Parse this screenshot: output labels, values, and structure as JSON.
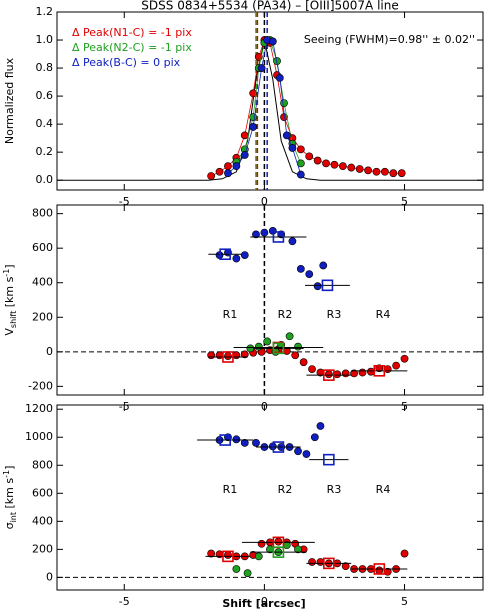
{
  "title": "SDSS 0834+5534 (PA34) – [OIII]5007A line",
  "chart_data": [
    {
      "type": "scatter",
      "xlim": [
        -7.4,
        7.8
      ],
      "xticks": [
        -5,
        0,
        5
      ],
      "ylim": [
        -0.07,
        1.2
      ],
      "yticks": [
        {
          "value": 0,
          "label": "0.0"
        },
        {
          "value": 0.2,
          "label": "0.2"
        },
        {
          "value": 0.4,
          "label": "0.4"
        },
        {
          "value": 0.6,
          "label": "0.6"
        },
        {
          "value": 0.8,
          "label": "0.8"
        },
        {
          "value": 1.0,
          "label": "1.0"
        },
        {
          "value": 1.2,
          "label": "1.2"
        }
      ],
      "ylabel": {
        "text": "Normalized flux"
      },
      "annotation": "Seeing (FWHM)=0.98'' ± 0.02''",
      "vlines": [
        {
          "x": 0,
          "color": "#000000"
        },
        {
          "x": -0.3,
          "color": "#20a020"
        },
        {
          "x": -0.25,
          "color": "#e00000"
        },
        {
          "x": 0.1,
          "color": "#1020c0"
        }
      ],
      "series": [
        {
          "style": "line",
          "color": "#000000",
          "x": [
            -7.4,
            -2,
            -1.5,
            -1,
            -0.6,
            -0.3,
            0,
            0.3,
            0.6,
            1,
            1.5,
            2,
            7.8
          ],
          "values": [
            0,
            0,
            0.01,
            0.06,
            0.28,
            0.72,
            1.0,
            0.72,
            0.28,
            0.06,
            0.01,
            0,
            0
          ]
        },
        {
          "name": "Δ Peak(N1-C) = -1 pix",
          "style": "line+markers",
          "color": "#e00000",
          "x": [
            -1.9,
            -1.6,
            -1.3,
            -1.0,
            -0.7,
            -0.4,
            -0.2,
            0,
            0.2,
            0.45,
            0.7,
            1.0,
            1.3,
            1.6,
            1.9,
            2.2,
            2.5,
            2.8,
            3.1,
            3.4,
            3.7,
            4.0,
            4.3,
            4.6,
            4.9
          ],
          "values": [
            0.03,
            0.06,
            0.1,
            0.16,
            0.32,
            0.62,
            0.88,
            1.0,
            0.98,
            0.75,
            0.45,
            0.3,
            0.22,
            0.17,
            0.14,
            0.12,
            0.11,
            0.1,
            0.09,
            0.08,
            0.07,
            0.06,
            0.06,
            0.05,
            0.05
          ]
        },
        {
          "name": "Δ Peak(N2-C) = -1 pix",
          "style": "line+markers",
          "color": "#20a020",
          "x": [
            -1.0,
            -0.7,
            -0.4,
            -0.2,
            0,
            0.2,
            0.45,
            0.7,
            1.0,
            1.3
          ],
          "values": [
            0.13,
            0.22,
            0.45,
            0.8,
            0.98,
            1.0,
            0.85,
            0.55,
            0.26,
            0.12
          ]
        },
        {
          "name": "Δ Peak(B-C) = 0 pix",
          "style": "line+markers",
          "color": "#1020c0",
          "x": [
            -1.3,
            -1.0,
            -0.7,
            -0.4,
            -0.1,
            0.1,
            0.3,
            0.55,
            0.8,
            1.0,
            1.3
          ],
          "values": [
            0.05,
            0.1,
            0.18,
            0.38,
            0.8,
            1.0,
            0.99,
            0.73,
            0.32,
            0.23,
            0.04
          ]
        }
      ]
    },
    {
      "type": "scatter",
      "xlim": [
        -7.4,
        7.8
      ],
      "xticks": [
        -5,
        0,
        5
      ],
      "ylim": [
        -250,
        850
      ],
      "yticks": [
        -200,
        0,
        200,
        400,
        600,
        800
      ],
      "ylabel": {
        "text": "V",
        "sub": "shift",
        "unit": " [km s",
        "sup": "-1",
        "close": "]"
      },
      "region_labels": [
        "R1",
        "R2",
        "R3",
        "R4"
      ],
      "vlines": [
        {
          "x": 0,
          "color": "#000000"
        }
      ],
      "hlines": [
        {
          "y": 0,
          "color": "#000000"
        }
      ],
      "series": [
        {
          "style": "markers",
          "color": "#1020c0",
          "x": [
            -1.6,
            -1.3,
            -1.0,
            -0.7,
            -0.3,
            0,
            0.3,
            0.6,
            1.0,
            1.3,
            1.6,
            1.9,
            2.1
          ],
          "values": [
            560,
            575,
            540,
            560,
            680,
            690,
            700,
            680,
            640,
            480,
            450,
            380,
            500
          ]
        },
        {
          "style": "markers",
          "color": "#e00000",
          "x": [
            -1.9,
            -1.6,
            -1.3,
            -1.0,
            -0.7,
            -0.4,
            -0.1,
            0.2,
            0.5,
            0.8,
            1.1,
            1.4,
            1.7,
            2.0,
            2.3,
            2.6,
            2.9,
            3.2,
            3.5,
            3.8,
            4.1,
            4.4,
            4.7,
            5.0
          ],
          "values": [
            -20,
            -20,
            -25,
            -20,
            -15,
            -5,
            0,
            10,
            15,
            5,
            -20,
            -60,
            -100,
            -120,
            -130,
            -130,
            -125,
            -125,
            -120,
            -115,
            -95,
            -100,
            -80,
            -40
          ]
        },
        {
          "style": "markers",
          "color": "#20a020",
          "x": [
            -0.5,
            -0.2,
            0.1,
            0.4,
            0.6,
            0.9,
            1.2
          ],
          "values": [
            20,
            30,
            60,
            0,
            40,
            90,
            30
          ]
        },
        {
          "style": "squares",
          "color": "#1020c0",
          "x": [
            -1.4,
            0.5,
            2.25
          ],
          "xerr": [
            0.6,
            1.0,
            0.8
          ],
          "values": [
            565,
            665,
            385
          ]
        },
        {
          "style": "squares",
          "color": "#e00000",
          "x": [
            -1.3,
            0.5,
            2.3,
            4.1
          ],
          "xerr": [
            0.7,
            1.6,
            0.8,
            1.0
          ],
          "values": [
            -30,
            25,
            -135,
            -110
          ]
        },
        {
          "style": "squares",
          "color": "#20a020",
          "x": [
            0.5
          ],
          "xerr": [
            0.9
          ],
          "values": [
            20
          ]
        }
      ]
    },
    {
      "type": "scatter",
      "xlim": [
        -7.4,
        7.8
      ],
      "xticks": [
        -5,
        0,
        5
      ],
      "xlabel": "Shift [arcsec]",
      "ylim": [
        -90,
        1230
      ],
      "yticks": [
        0,
        200,
        400,
        600,
        800,
        1000,
        1200
      ],
      "ylabel": {
        "text": "σ",
        "sub": "int",
        "unit": " [km s",
        "sup": "-1",
        "close": "]"
      },
      "region_labels": [
        "R1",
        "R2",
        "R3",
        "R4"
      ],
      "hlines": [
        {
          "y": 0,
          "color": "#000000"
        }
      ],
      "series": [
        {
          "style": "markers",
          "color": "#1020c0",
          "x": [
            -1.6,
            -1.3,
            -1.0,
            -0.7,
            -0.3,
            0,
            0.3,
            0.6,
            0.9,
            1.2,
            1.5,
            1.8,
            2.0
          ],
          "values": [
            980,
            1000,
            985,
            960,
            960,
            930,
            935,
            930,
            930,
            900,
            880,
            1000,
            1080
          ]
        },
        {
          "style": "markers",
          "color": "#e00000",
          "x": [
            -1.9,
            -1.6,
            -1.3,
            -1.0,
            -0.7,
            -0.4,
            -0.1,
            0.2,
            0.5,
            0.8,
            1.1,
            1.4,
            1.7,
            2.0,
            2.3,
            2.6,
            2.9,
            3.2,
            3.5,
            3.8,
            4.1,
            4.4,
            4.7,
            5.0
          ],
          "values": [
            170,
            165,
            160,
            150,
            150,
            160,
            240,
            250,
            255,
            250,
            240,
            200,
            110,
            110,
            100,
            100,
            80,
            60,
            60,
            60,
            50,
            40,
            60,
            170
          ]
        },
        {
          "style": "markers",
          "color": "#20a020",
          "x": [
            -1.0,
            -0.6,
            -0.2,
            0.2,
            0.5,
            0.8,
            1.2
          ],
          "values": [
            60,
            30,
            150,
            200,
            180,
            230,
            200
          ]
        },
        {
          "style": "squares",
          "color": "#1020c0",
          "x": [
            -1.4,
            0.5,
            2.3
          ],
          "xerr": [
            1.0,
            0.8,
            0.7
          ],
          "values": [
            980,
            930,
            840
          ]
        },
        {
          "style": "squares",
          "color": "#e00000",
          "x": [
            -1.3,
            0.5,
            2.3,
            4.1
          ],
          "xerr": [
            0.8,
            1.3,
            0.8,
            1.0
          ],
          "values": [
            150,
            250,
            100,
            60
          ]
        },
        {
          "style": "squares",
          "color": "#20a020",
          "x": [
            0.5
          ],
          "xerr": [
            1.0
          ],
          "values": [
            180
          ]
        }
      ]
    }
  ]
}
